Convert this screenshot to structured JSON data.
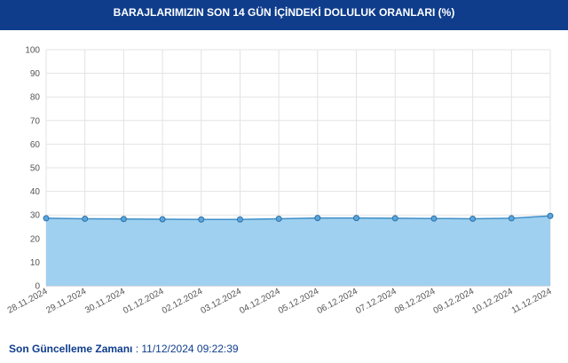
{
  "chart_data": {
    "type": "area",
    "title": "BARAJLARIMIZIN SON 14 GÜN İÇİNDEKİ DOLULUK ORANLARI (%)",
    "categories": [
      "28.11.2024",
      "29.11.2024",
      "30.11.2024",
      "01.12.2024",
      "02.12.2024",
      "03.12.2024",
      "04.12.2024",
      "05.12.2024",
      "06.12.2024",
      "07.12.2024",
      "08.12.2024",
      "09.12.2024",
      "10.12.2024",
      "11.12.2024"
    ],
    "values": [
      28.6,
      28.4,
      28.3,
      28.2,
      28.1,
      28.1,
      28.4,
      28.7,
      28.7,
      28.6,
      28.5,
      28.4,
      28.6,
      29.6
    ],
    "color": "#3f8fc9",
    "fill_color": "#9fd0ef",
    "ylim": [
      0,
      100
    ],
    "yticks": [
      0,
      10,
      20,
      30,
      40,
      50,
      60,
      70,
      80,
      90,
      100
    ],
    "grid": true
  },
  "footer": {
    "label": "Son Güncelleme Zamanı",
    "value": ": 11/12/2024 09:22:39"
  }
}
